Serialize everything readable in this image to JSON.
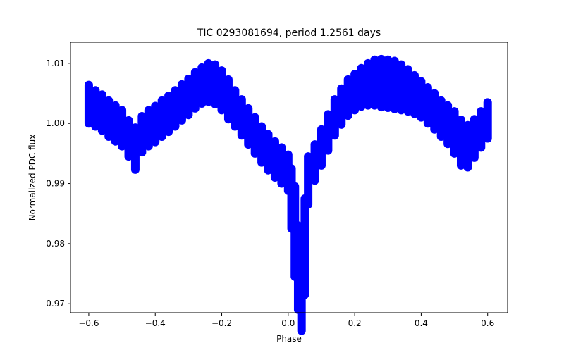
{
  "chart_data": {
    "type": "scatter",
    "title": "TIC 0293081694, period 1.2561 days",
    "xlabel": "Phase",
    "ylabel": "Normalized PDC flux",
    "xlim": [
      -0.655,
      0.66
    ],
    "ylim": [
      0.9685,
      1.0135
    ],
    "xticks": [
      -0.6,
      -0.4,
      -0.2,
      0.0,
      0.2,
      0.4,
      0.6
    ],
    "xtick_labels": [
      "−0.6",
      "−0.4",
      "−0.2",
      "0.0",
      "0.2",
      "0.4",
      "0.6"
    ],
    "yticks": [
      0.97,
      0.98,
      0.99,
      1.0,
      1.01
    ],
    "ytick_labels": [
      "0.97",
      "0.98",
      "0.99",
      "1.00",
      "1.01"
    ],
    "grid": false,
    "series": [
      {
        "name": "PDC flux",
        "color": "#0000ff",
        "marker": "circle",
        "x": [
          -0.6,
          -0.58,
          -0.56,
          -0.54,
          -0.52,
          -0.5,
          -0.48,
          -0.46,
          -0.44,
          -0.42,
          -0.4,
          -0.38,
          -0.36,
          -0.34,
          -0.32,
          -0.3,
          -0.28,
          -0.26,
          -0.24,
          -0.22,
          -0.2,
          -0.18,
          -0.16,
          -0.14,
          -0.12,
          -0.1,
          -0.08,
          -0.06,
          -0.04,
          -0.02,
          0.0,
          0.01,
          0.02,
          0.03,
          0.04,
          0.05,
          0.06,
          0.08,
          0.1,
          0.12,
          0.14,
          0.16,
          0.18,
          0.2,
          0.22,
          0.24,
          0.26,
          0.28,
          0.3,
          0.32,
          0.34,
          0.36,
          0.38,
          0.4,
          0.42,
          0.44,
          0.46,
          0.48,
          0.5,
          0.52,
          0.54,
          0.56,
          0.58,
          0.6
        ],
        "y": [
          1.0032,
          1.0025,
          1.0018,
          1.0008,
          1.0,
          0.9992,
          0.9975,
          0.9958,
          0.9982,
          0.9992,
          0.9999,
          1.0008,
          1.0016,
          1.0025,
          1.0035,
          1.0044,
          1.0055,
          1.0063,
          1.0068,
          1.0065,
          1.0055,
          1.004,
          1.0025,
          1.001,
          0.9995,
          0.998,
          0.9965,
          0.9952,
          0.994,
          0.993,
          0.9918,
          0.9875,
          0.982,
          0.976,
          0.973,
          0.9795,
          0.9905,
          0.9935,
          0.996,
          0.9985,
          1.001,
          1.0028,
          1.0043,
          1.0052,
          1.006,
          1.0065,
          1.0068,
          1.0067,
          1.0066,
          1.0064,
          1.006,
          1.0055,
          1.0048,
          1.004,
          1.003,
          1.002,
          1.0008,
          0.9998,
          0.9985,
          0.9968,
          0.9962,
          0.9975,
          0.999,
          1.0005
        ],
        "yerr": [
          0.0032,
          0.003,
          0.003,
          0.003,
          0.003,
          0.003,
          0.003,
          0.0035,
          0.003,
          0.003,
          0.003,
          0.003,
          0.003,
          0.003,
          0.003,
          0.003,
          0.003,
          0.003,
          0.0032,
          0.0033,
          0.0033,
          0.0033,
          0.003,
          0.003,
          0.003,
          0.003,
          0.003,
          0.003,
          0.003,
          0.003,
          0.003,
          0.005,
          0.0075,
          0.007,
          0.0075,
          0.008,
          0.004,
          0.003,
          0.003,
          0.003,
          0.003,
          0.003,
          0.003,
          0.003,
          0.0032,
          0.0035,
          0.0038,
          0.004,
          0.004,
          0.004,
          0.0038,
          0.0035,
          0.0032,
          0.003,
          0.003,
          0.003,
          0.003,
          0.0032,
          0.0035,
          0.0038,
          0.0035,
          0.0032,
          0.003,
          0.003
        ]
      }
    ]
  }
}
